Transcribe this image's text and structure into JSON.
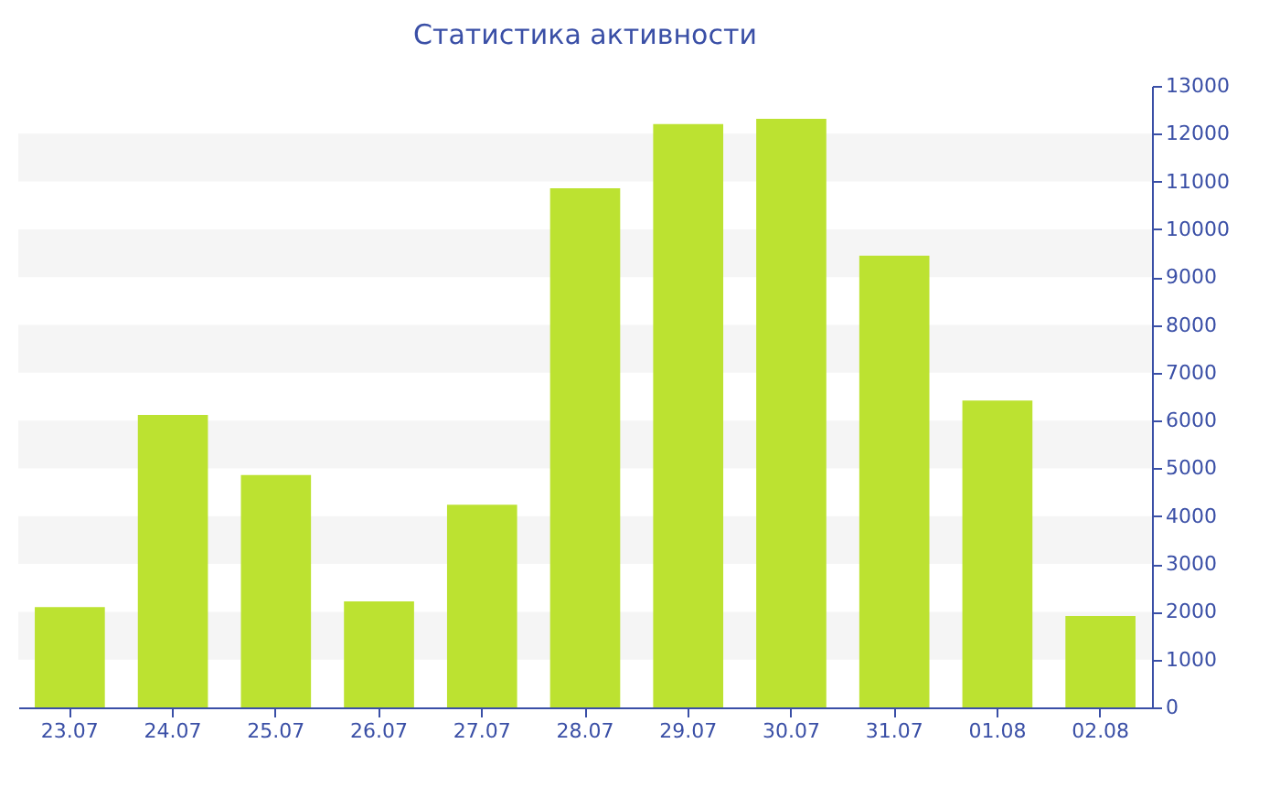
{
  "chart_data": {
    "type": "bar",
    "title": "Статистика активности",
    "categories": [
      "23.07",
      "24.07",
      "25.07",
      "26.07",
      "27.07",
      "28.07",
      "29.07",
      "30.07",
      "31.07",
      "01.08",
      "02.08"
    ],
    "values": [
      2100,
      6120,
      4860,
      2220,
      4240,
      10860,
      12200,
      12310,
      9450,
      6420,
      1910
    ],
    "color": "#bce231",
    "ylim": [
      0,
      13000
    ],
    "yticks": [
      0,
      1000,
      2000,
      3000,
      4000,
      5000,
      6000,
      7000,
      8000,
      9000,
      10000,
      11000,
      12000,
      13000
    ],
    "grid": false,
    "bands": [
      {
        "axis": "y",
        "from": 1000,
        "to": 2000,
        "color": "#f5f5f5"
      },
      {
        "axis": "y",
        "from": 3000,
        "to": 4000,
        "color": "#f5f5f5"
      },
      {
        "axis": "y",
        "from": 5000,
        "to": 6000,
        "color": "#f5f5f5"
      },
      {
        "axis": "y",
        "from": 7000,
        "to": 8000,
        "color": "#f5f5f5"
      },
      {
        "axis": "y",
        "from": 9000,
        "to": 10000,
        "color": "#f5f5f5"
      },
      {
        "axis": "y",
        "from": 11000,
        "to": 12000,
        "color": "#f5f5f5"
      }
    ]
  }
}
